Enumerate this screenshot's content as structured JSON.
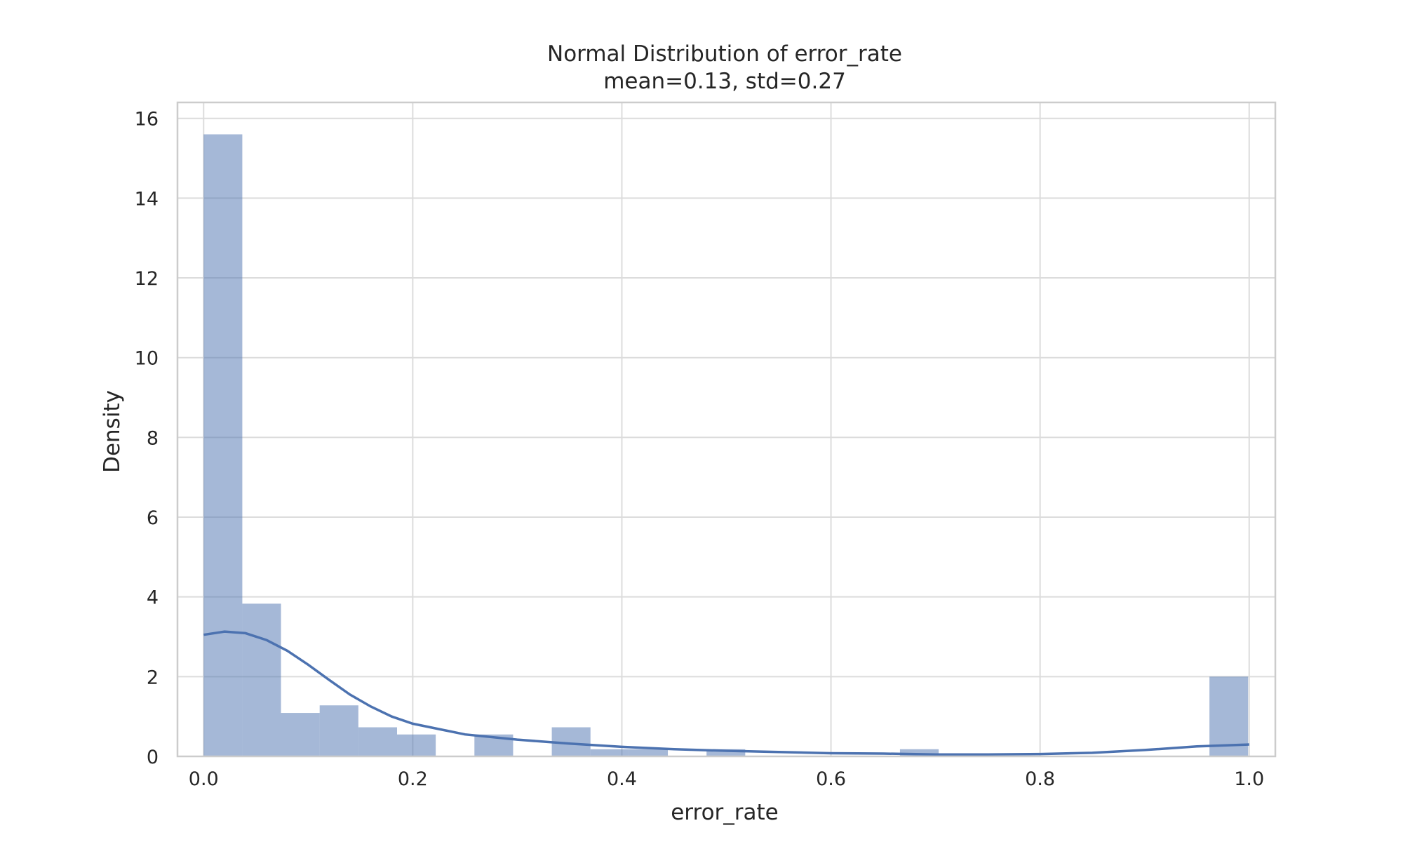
{
  "chart_data": {
    "type": "bar",
    "title": "Normal Distribution of error_rate",
    "subtitle": "mean=0.13, std=0.27",
    "xlabel": "error_rate",
    "ylabel": "Density",
    "xlim": [
      -0.025,
      1.025
    ],
    "ylim": [
      0,
      16.4
    ],
    "x_ticks": [
      "0.0",
      "0.2",
      "0.4",
      "0.6",
      "0.8",
      "1.0"
    ],
    "y_ticks": [
      "0",
      "2",
      "4",
      "6",
      "8",
      "10",
      "12",
      "14",
      "16"
    ],
    "grid": true,
    "bin_width": 0.037,
    "bins": [
      {
        "x0": 0.0,
        "value": 15.6
      },
      {
        "x0": 0.037,
        "value": 3.83
      },
      {
        "x0": 0.074,
        "value": 1.09
      },
      {
        "x0": 0.111,
        "value": 1.28
      },
      {
        "x0": 0.148,
        "value": 0.73
      },
      {
        "x0": 0.185,
        "value": 0.55
      },
      {
        "x0": 0.222,
        "value": 0.0
      },
      {
        "x0": 0.259,
        "value": 0.55
      },
      {
        "x0": 0.296,
        "value": 0.0
      },
      {
        "x0": 0.333,
        "value": 0.73
      },
      {
        "x0": 0.37,
        "value": 0.18
      },
      {
        "x0": 0.407,
        "value": 0.18
      },
      {
        "x0": 0.444,
        "value": 0.0
      },
      {
        "x0": 0.481,
        "value": 0.18
      },
      {
        "x0": 0.518,
        "value": 0.0
      },
      {
        "x0": 0.555,
        "value": 0.0
      },
      {
        "x0": 0.592,
        "value": 0.0
      },
      {
        "x0": 0.629,
        "value": 0.0
      },
      {
        "x0": 0.666,
        "value": 0.18
      },
      {
        "x0": 0.703,
        "value": 0.0
      },
      {
        "x0": 0.74,
        "value": 0.0
      },
      {
        "x0": 0.777,
        "value": 0.0
      },
      {
        "x0": 0.814,
        "value": 0.0
      },
      {
        "x0": 0.851,
        "value": 0.0
      },
      {
        "x0": 0.888,
        "value": 0.0
      },
      {
        "x0": 0.925,
        "value": 0.0
      },
      {
        "x0": 0.962,
        "value": 2.0
      }
    ],
    "kde": [
      [
        0.0,
        3.05
      ],
      [
        0.02,
        3.13
      ],
      [
        0.04,
        3.09
      ],
      [
        0.06,
        2.92
      ],
      [
        0.08,
        2.65
      ],
      [
        0.1,
        2.3
      ],
      [
        0.12,
        1.92
      ],
      [
        0.14,
        1.55
      ],
      [
        0.16,
        1.25
      ],
      [
        0.18,
        1.0
      ],
      [
        0.2,
        0.82
      ],
      [
        0.25,
        0.55
      ],
      [
        0.3,
        0.42
      ],
      [
        0.35,
        0.32
      ],
      [
        0.4,
        0.24
      ],
      [
        0.45,
        0.18
      ],
      [
        0.5,
        0.14
      ],
      [
        0.55,
        0.11
      ],
      [
        0.6,
        0.08
      ],
      [
        0.65,
        0.07
      ],
      [
        0.7,
        0.05
      ],
      [
        0.75,
        0.05
      ],
      [
        0.8,
        0.06
      ],
      [
        0.85,
        0.09
      ],
      [
        0.9,
        0.16
      ],
      [
        0.95,
        0.25
      ],
      [
        1.0,
        0.3
      ]
    ],
    "colors": {
      "bar": "#4c72b0",
      "kde": "#4c72b0",
      "grid": "#dcdcdc",
      "frame": "#cccccc"
    }
  }
}
